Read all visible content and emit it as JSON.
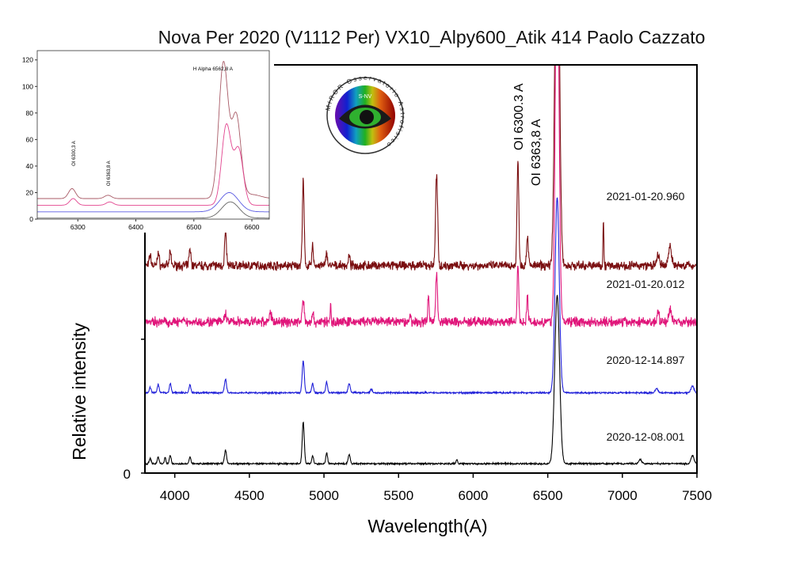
{
  "chart_data": {
    "type": "line",
    "title": "Nova Per 2020 (V1112 Per) VX10_Alpy600_Atik 414 Paolo Cazzato",
    "xlabel": "Wavelength(A)",
    "ylabel": "Relative intensity",
    "xlim": [
      3800,
      7500
    ],
    "ylim": [
      0,
      3.05
    ],
    "xticks": [
      4000,
      4500,
      5000,
      5500,
      6000,
      6500,
      7000,
      7500
    ],
    "yticks": [
      {
        "value": 0,
        "label": "0"
      },
      {
        "value": 1,
        "label": ""
      }
    ],
    "grid": false,
    "annotations": [
      {
        "text": "OI 6300.3 A",
        "x": 6300
      },
      {
        "text": "OI 6363,8 A",
        "x": 6364
      }
    ],
    "series": [
      {
        "name": "2021-01-20.960",
        "color": "#7a0e10",
        "baseline": 1.55,
        "noise": 0.045,
        "peaks": [
          [
            3835,
            0.08,
            6
          ],
          [
            3889,
            0.1,
            6
          ],
          [
            3970,
            0.1,
            6
          ],
          [
            4102,
            0.12,
            6
          ],
          [
            4340,
            0.25,
            6
          ],
          [
            4861,
            0.63,
            6
          ],
          [
            4924,
            0.15,
            5
          ],
          [
            5018,
            0.1,
            5
          ],
          [
            5169,
            0.07,
            5
          ],
          [
            5755,
            0.68,
            7
          ],
          [
            6300,
            0.78,
            6
          ],
          [
            6364,
            0.22,
            6
          ],
          [
            6563,
            3.2,
            14
          ],
          [
            6873,
            0.34,
            3
          ],
          [
            7320,
            0.15,
            10
          ],
          [
            7240,
            0.08,
            8
          ]
        ]
      },
      {
        "name": "2021-01-20.012",
        "color": "#e0157a",
        "baseline": 1.13,
        "noise": 0.05,
        "peaks": [
          [
            4340,
            0.05,
            8
          ],
          [
            4640,
            0.05,
            10
          ],
          [
            4861,
            0.17,
            6
          ],
          [
            4924,
            0.07,
            5
          ],
          [
            5045,
            0.12,
            3
          ],
          [
            5577,
            0.06,
            4
          ],
          [
            5700,
            0.2,
            5
          ],
          [
            5755,
            0.37,
            6
          ],
          [
            6300,
            0.45,
            5
          ],
          [
            6364,
            0.18,
            5
          ],
          [
            6563,
            3.0,
            12
          ],
          [
            7240,
            0.08,
            6
          ],
          [
            7320,
            0.1,
            8
          ]
        ]
      },
      {
        "name": "2020-12-14.897",
        "color": "#1f1fd8",
        "baseline": 0.6,
        "noise": 0.008,
        "peaks": [
          [
            3835,
            0.04,
            6
          ],
          [
            3889,
            0.06,
            6
          ],
          [
            3970,
            0.07,
            6
          ],
          [
            4102,
            0.06,
            6
          ],
          [
            4340,
            0.1,
            7
          ],
          [
            4861,
            0.24,
            7
          ],
          [
            4924,
            0.07,
            6
          ],
          [
            5018,
            0.08,
            6
          ],
          [
            5169,
            0.07,
            7
          ],
          [
            5317,
            0.03,
            6
          ],
          [
            6563,
            1.46,
            14
          ],
          [
            7230,
            0.03,
            10
          ],
          [
            7470,
            0.05,
            10
          ]
        ]
      },
      {
        "name": "2020-12-08.001",
        "color": "#000000",
        "baseline": 0.07,
        "noise": 0.008,
        "peaks": [
          [
            3835,
            0.04,
            6
          ],
          [
            3889,
            0.05,
            6
          ],
          [
            3935,
            0.05,
            5
          ],
          [
            3970,
            0.06,
            6
          ],
          [
            4102,
            0.05,
            6
          ],
          [
            4340,
            0.1,
            7
          ],
          [
            4861,
            0.31,
            7
          ],
          [
            4924,
            0.06,
            6
          ],
          [
            5018,
            0.08,
            6
          ],
          [
            5169,
            0.07,
            7
          ],
          [
            5890,
            0.03,
            5
          ],
          [
            6563,
            1.26,
            16
          ],
          [
            7120,
            0.03,
            10
          ],
          [
            7470,
            0.06,
            10
          ]
        ]
      }
    ],
    "inset": {
      "xlim": [
        6230,
        6630
      ],
      "ylim": [
        0,
        127
      ],
      "xticks": [
        6300,
        6400,
        6500,
        6600
      ],
      "yticks": [
        0,
        20,
        40,
        60,
        80,
        100,
        120
      ],
      "annotations": [
        {
          "text": "OI 6300,3 A",
          "x": 6290,
          "y": 40
        },
        {
          "text": "OI 6363,8 A",
          "x": 6350,
          "y": 25
        },
        {
          "text": "H Alpha 6562,8 A",
          "x": 6515,
          "y": 112
        }
      ],
      "series": [
        {
          "name": "2021-01-20.960",
          "color": "#a85a66",
          "baseline": 15.5,
          "peaks": [
            [
              6290,
              7.5,
              6
            ],
            [
              6352,
              2.5,
              6
            ],
            [
              6551,
              102,
              8
            ],
            [
              6573,
              62,
              8
            ],
            [
              6600,
              3,
              15
            ]
          ]
        },
        {
          "name": "2021-01-20.012",
          "color": "#e2448f",
          "baseline": 10.5,
          "peaks": [
            [
              6292,
              5,
              6
            ],
            [
              6355,
              2.5,
              6
            ],
            [
              6556,
              60,
              8
            ],
            [
              6577,
              42,
              8
            ]
          ]
        },
        {
          "name": "2020-12-14.897",
          "color": "#5b5be2",
          "baseline": 5.5,
          "peaks": [
            [
              6561,
              14.5,
              16
            ]
          ]
        },
        {
          "name": "2020-12-08.001",
          "color": "#666666",
          "baseline": 0.8,
          "peaks": [
            [
              6563,
              12.2,
              15
            ]
          ]
        }
      ]
    }
  },
  "logo": {
    "text": "MIROR Osservatorio Astrofisico",
    "inner_text": "S-NV"
  }
}
